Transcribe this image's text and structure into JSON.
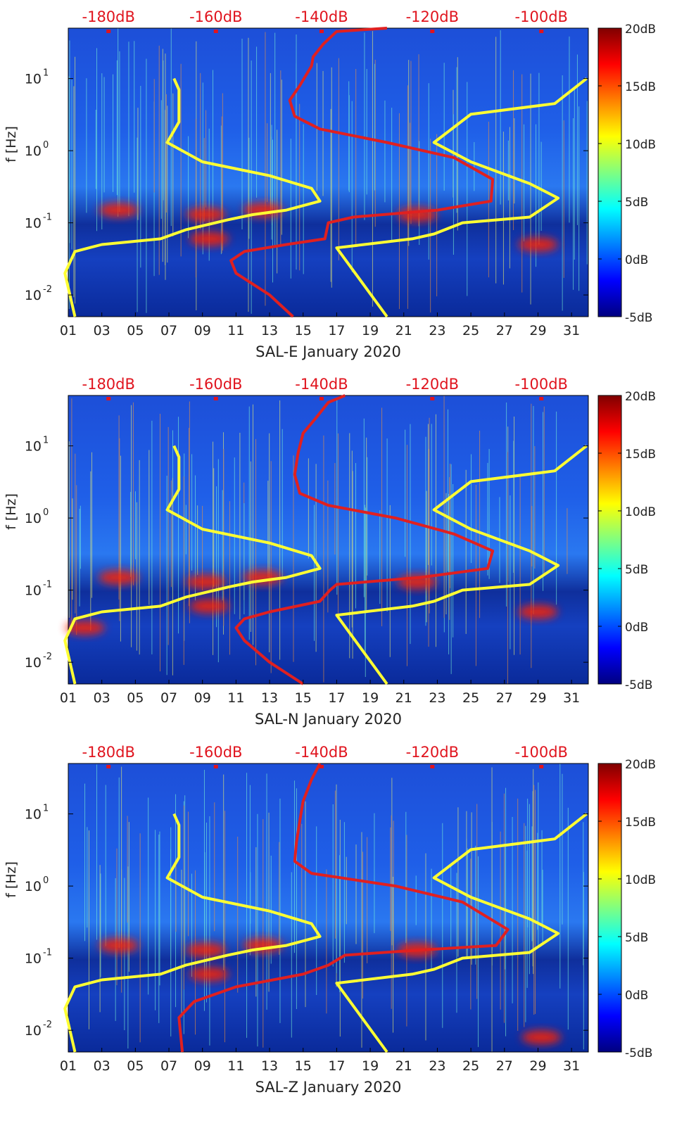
{
  "colors": {
    "red_curve": "#e02020",
    "yellow_curve": "#ffff33",
    "db_label": "#e0141e",
    "axis_text": "#222222",
    "colormap": [
      "#000080",
      "#0000ff",
      "#0080ff",
      "#00ffff",
      "#80ff80",
      "#ffff00",
      "#ff8000",
      "#ff0000",
      "#800000"
    ]
  },
  "chart_data": [
    {
      "type": "heatmap",
      "title": "SAL-E January 2020",
      "xlabel": "SAL-E January 2020",
      "ylabel": "f [Hz]",
      "xlim": [
        1,
        32
      ],
      "ylim": [
        0.005,
        50
      ],
      "yscale": "log",
      "x_ticks": [
        "01",
        "03",
        "05",
        "07",
        "09",
        "11",
        "13",
        "15",
        "17",
        "19",
        "21",
        "23",
        "25",
        "27",
        "29",
        "31"
      ],
      "y_ticks": [
        {
          "value": 0.01,
          "base": "10",
          "exp": "-2"
        },
        {
          "value": 0.1,
          "base": "10",
          "exp": "-1"
        },
        {
          "value": 1,
          "base": "10",
          "exp": "0"
        },
        {
          "value": 10,
          "base": "10",
          "exp": "1"
        }
      ],
      "colorbar": {
        "ticks": [
          "20dB",
          "15dB",
          "10dB",
          "5dB",
          "0dB",
          "-5dB"
        ],
        "range": [
          -5,
          20
        ]
      },
      "top_labels": [
        {
          "text": "-180dB",
          "x": 3.4
        },
        {
          "text": "-160dB",
          "x": 9.8
        },
        {
          "text": "-140dB",
          "x": 16.1
        },
        {
          "text": "-120dB",
          "x": 22.7
        },
        {
          "text": "-100dB",
          "x": 29.2
        }
      ],
      "noise_hot_spots": [
        {
          "x": 4.0,
          "f": 0.15
        },
        {
          "x": 9.2,
          "f": 0.13
        },
        {
          "x": 12.6,
          "f": 0.15
        },
        {
          "x": 21.8,
          "f": 0.13
        },
        {
          "x": 9.4,
          "f": 0.06
        },
        {
          "x": 29.0,
          "f": 0.05
        }
      ],
      "series": [
        {
          "name": "yellow-low",
          "x": [
            7.3,
            7.6,
            7.6,
            6.9,
            9.0,
            13.0,
            15.5,
            16.0,
            14.0,
            12.0,
            10.5,
            8.0,
            6.5,
            3.0,
            1.4,
            0.8,
            1.4
          ],
          "y": [
            10,
            7,
            2.5,
            1.3,
            0.7,
            0.45,
            0.3,
            0.2,
            0.15,
            0.13,
            0.11,
            0.08,
            0.06,
            0.05,
            0.04,
            0.02,
            0.005
          ]
        },
        {
          "name": "red-median",
          "x": [
            20.0,
            17.0,
            16.2,
            15.6,
            15.5,
            14.8,
            14.2,
            14.5,
            16.0,
            20.0,
            24.0,
            26.3,
            26.2,
            23.0,
            18.0,
            16.5,
            16.3,
            14.0,
            11.5,
            10.7,
            11.0,
            13.0,
            14.4
          ],
          "y": [
            50,
            45,
            30,
            20,
            15,
            8,
            5,
            3,
            2,
            1.3,
            0.8,
            0.4,
            0.2,
            0.15,
            0.12,
            0.1,
            0.06,
            0.05,
            0.04,
            0.03,
            0.02,
            0.01,
            0.005
          ]
        },
        {
          "name": "yellow-high",
          "x": [
            31.9,
            30.0,
            25.0,
            22.8,
            25.0,
            28.5,
            30.2,
            28.5,
            24.5,
            22.8,
            21.5,
            17.0,
            20.0
          ],
          "y": [
            10,
            4.5,
            3.2,
            1.3,
            0.7,
            0.35,
            0.22,
            0.12,
            0.1,
            0.07,
            0.06,
            0.045,
            0.005
          ]
        }
      ]
    },
    {
      "type": "heatmap",
      "title": "SAL-N January 2020",
      "xlabel": "SAL-N January 2020",
      "ylabel": "f [Hz]",
      "xlim": [
        1,
        32
      ],
      "ylim": [
        0.005,
        50
      ],
      "yscale": "log",
      "x_ticks": [
        "01",
        "03",
        "05",
        "07",
        "09",
        "11",
        "13",
        "15",
        "17",
        "19",
        "21",
        "23",
        "25",
        "27",
        "29",
        "31"
      ],
      "y_ticks": [
        {
          "value": 0.01,
          "base": "10",
          "exp": "-2"
        },
        {
          "value": 0.1,
          "base": "10",
          "exp": "-1"
        },
        {
          "value": 1,
          "base": "10",
          "exp": "0"
        },
        {
          "value": 10,
          "base": "10",
          "exp": "1"
        }
      ],
      "colorbar": {
        "ticks": [
          "20dB",
          "15dB",
          "10dB",
          "5dB",
          "0dB",
          "-5dB"
        ],
        "range": [
          -5,
          20
        ]
      },
      "top_labels": [
        {
          "text": "-180dB",
          "x": 3.4
        },
        {
          "text": "-160dB",
          "x": 9.8
        },
        {
          "text": "-140dB",
          "x": 16.1
        },
        {
          "text": "-120dB",
          "x": 22.7
        },
        {
          "text": "-100dB",
          "x": 29.2
        }
      ],
      "noise_hot_spots": [
        {
          "x": 4.0,
          "f": 0.15
        },
        {
          "x": 9.2,
          "f": 0.13
        },
        {
          "x": 12.6,
          "f": 0.15
        },
        {
          "x": 21.8,
          "f": 0.13
        },
        {
          "x": 9.4,
          "f": 0.06
        },
        {
          "x": 2.0,
          "f": 0.03
        },
        {
          "x": 29.0,
          "f": 0.05
        }
      ],
      "series": [
        {
          "name": "yellow-low",
          "x": [
            7.3,
            7.6,
            7.6,
            6.9,
            9.0,
            13.0,
            15.5,
            16.0,
            14.0,
            12.0,
            10.5,
            8.0,
            6.5,
            3.0,
            1.4,
            0.8,
            1.4
          ],
          "y": [
            10,
            7,
            2.5,
            1.3,
            0.7,
            0.45,
            0.3,
            0.2,
            0.15,
            0.13,
            0.11,
            0.08,
            0.06,
            0.05,
            0.04,
            0.02,
            0.005
          ]
        },
        {
          "name": "red-median",
          "x": [
            17.5,
            16.5,
            15.8,
            15.0,
            14.7,
            14.5,
            14.8,
            16.5,
            20.5,
            24.0,
            26.3,
            26.0,
            22.0,
            17.0,
            16.6,
            16.0,
            13.0,
            11.5,
            11.0,
            11.5,
            13.0,
            15.0
          ],
          "y": [
            50,
            40,
            25,
            15,
            8,
            4,
            2.2,
            1.5,
            1.0,
            0.6,
            0.35,
            0.2,
            0.15,
            0.12,
            0.1,
            0.07,
            0.05,
            0.04,
            0.03,
            0.02,
            0.01,
            0.005
          ]
        },
        {
          "name": "yellow-high",
          "x": [
            31.9,
            30.0,
            25.0,
            22.8,
            25.0,
            28.5,
            30.2,
            28.5,
            24.5,
            22.8,
            21.5,
            17.0,
            20.0
          ],
          "y": [
            10,
            4.5,
            3.2,
            1.3,
            0.7,
            0.35,
            0.22,
            0.12,
            0.1,
            0.07,
            0.06,
            0.045,
            0.005
          ]
        }
      ]
    },
    {
      "type": "heatmap",
      "title": "SAL-Z January 2020",
      "xlabel": "SAL-Z January 2020",
      "ylabel": "f [Hz]",
      "xlim": [
        1,
        32
      ],
      "ylim": [
        0.005,
        50
      ],
      "yscale": "log",
      "x_ticks": [
        "01",
        "03",
        "05",
        "07",
        "09",
        "11",
        "13",
        "15",
        "17",
        "19",
        "21",
        "23",
        "25",
        "27",
        "29",
        "31"
      ],
      "y_ticks": [
        {
          "value": 0.01,
          "base": "10",
          "exp": "-2"
        },
        {
          "value": 0.1,
          "base": "10",
          "exp": "-1"
        },
        {
          "value": 1,
          "base": "10",
          "exp": "0"
        },
        {
          "value": 10,
          "base": "10",
          "exp": "1"
        }
      ],
      "colorbar": {
        "ticks": [
          "20dB",
          "15dB",
          "10dB",
          "5dB",
          "0dB",
          "-5dB"
        ],
        "range": [
          -5,
          20
        ]
      },
      "top_labels": [
        {
          "text": "-180dB",
          "x": 3.4
        },
        {
          "text": "-160dB",
          "x": 9.8
        },
        {
          "text": "-140dB",
          "x": 16.1
        },
        {
          "text": "-120dB",
          "x": 22.7
        },
        {
          "text": "-100dB",
          "x": 29.2
        }
      ],
      "noise_hot_spots": [
        {
          "x": 4.0,
          "f": 0.15
        },
        {
          "x": 9.2,
          "f": 0.13
        },
        {
          "x": 12.6,
          "f": 0.15
        },
        {
          "x": 21.8,
          "f": 0.13
        },
        {
          "x": 9.4,
          "f": 0.06
        },
        {
          "x": 29.2,
          "f": 0.008
        }
      ],
      "series": [
        {
          "name": "yellow-low",
          "x": [
            7.3,
            7.6,
            7.6,
            6.9,
            9.0,
            13.0,
            15.5,
            16.0,
            14.0,
            12.0,
            10.5,
            8.0,
            6.5,
            3.0,
            1.4,
            0.8,
            1.4
          ],
          "y": [
            10,
            7,
            2.5,
            1.3,
            0.7,
            0.45,
            0.3,
            0.2,
            0.15,
            0.13,
            0.11,
            0.08,
            0.06,
            0.05,
            0.04,
            0.02,
            0.005
          ]
        },
        {
          "name": "red-median",
          "x": [
            16.0,
            15.5,
            15.0,
            14.8,
            14.6,
            14.5,
            15.5,
            20.5,
            24.5,
            27.2,
            26.5,
            22.0,
            17.5,
            16.5,
            15.0,
            11.0,
            8.5,
            7.6,
            7.8
          ],
          "y": [
            50,
            30,
            15,
            8,
            4,
            2.2,
            1.5,
            1.0,
            0.6,
            0.25,
            0.15,
            0.13,
            0.11,
            0.08,
            0.06,
            0.04,
            0.025,
            0.015,
            0.005
          ]
        },
        {
          "name": "yellow-high",
          "x": [
            31.9,
            30.0,
            25.0,
            22.8,
            25.0,
            28.5,
            30.2,
            28.5,
            24.5,
            22.8,
            21.5,
            17.0,
            20.0
          ],
          "y": [
            10,
            4.5,
            3.2,
            1.3,
            0.7,
            0.35,
            0.22,
            0.12,
            0.1,
            0.07,
            0.06,
            0.045,
            0.005
          ]
        }
      ]
    }
  ]
}
